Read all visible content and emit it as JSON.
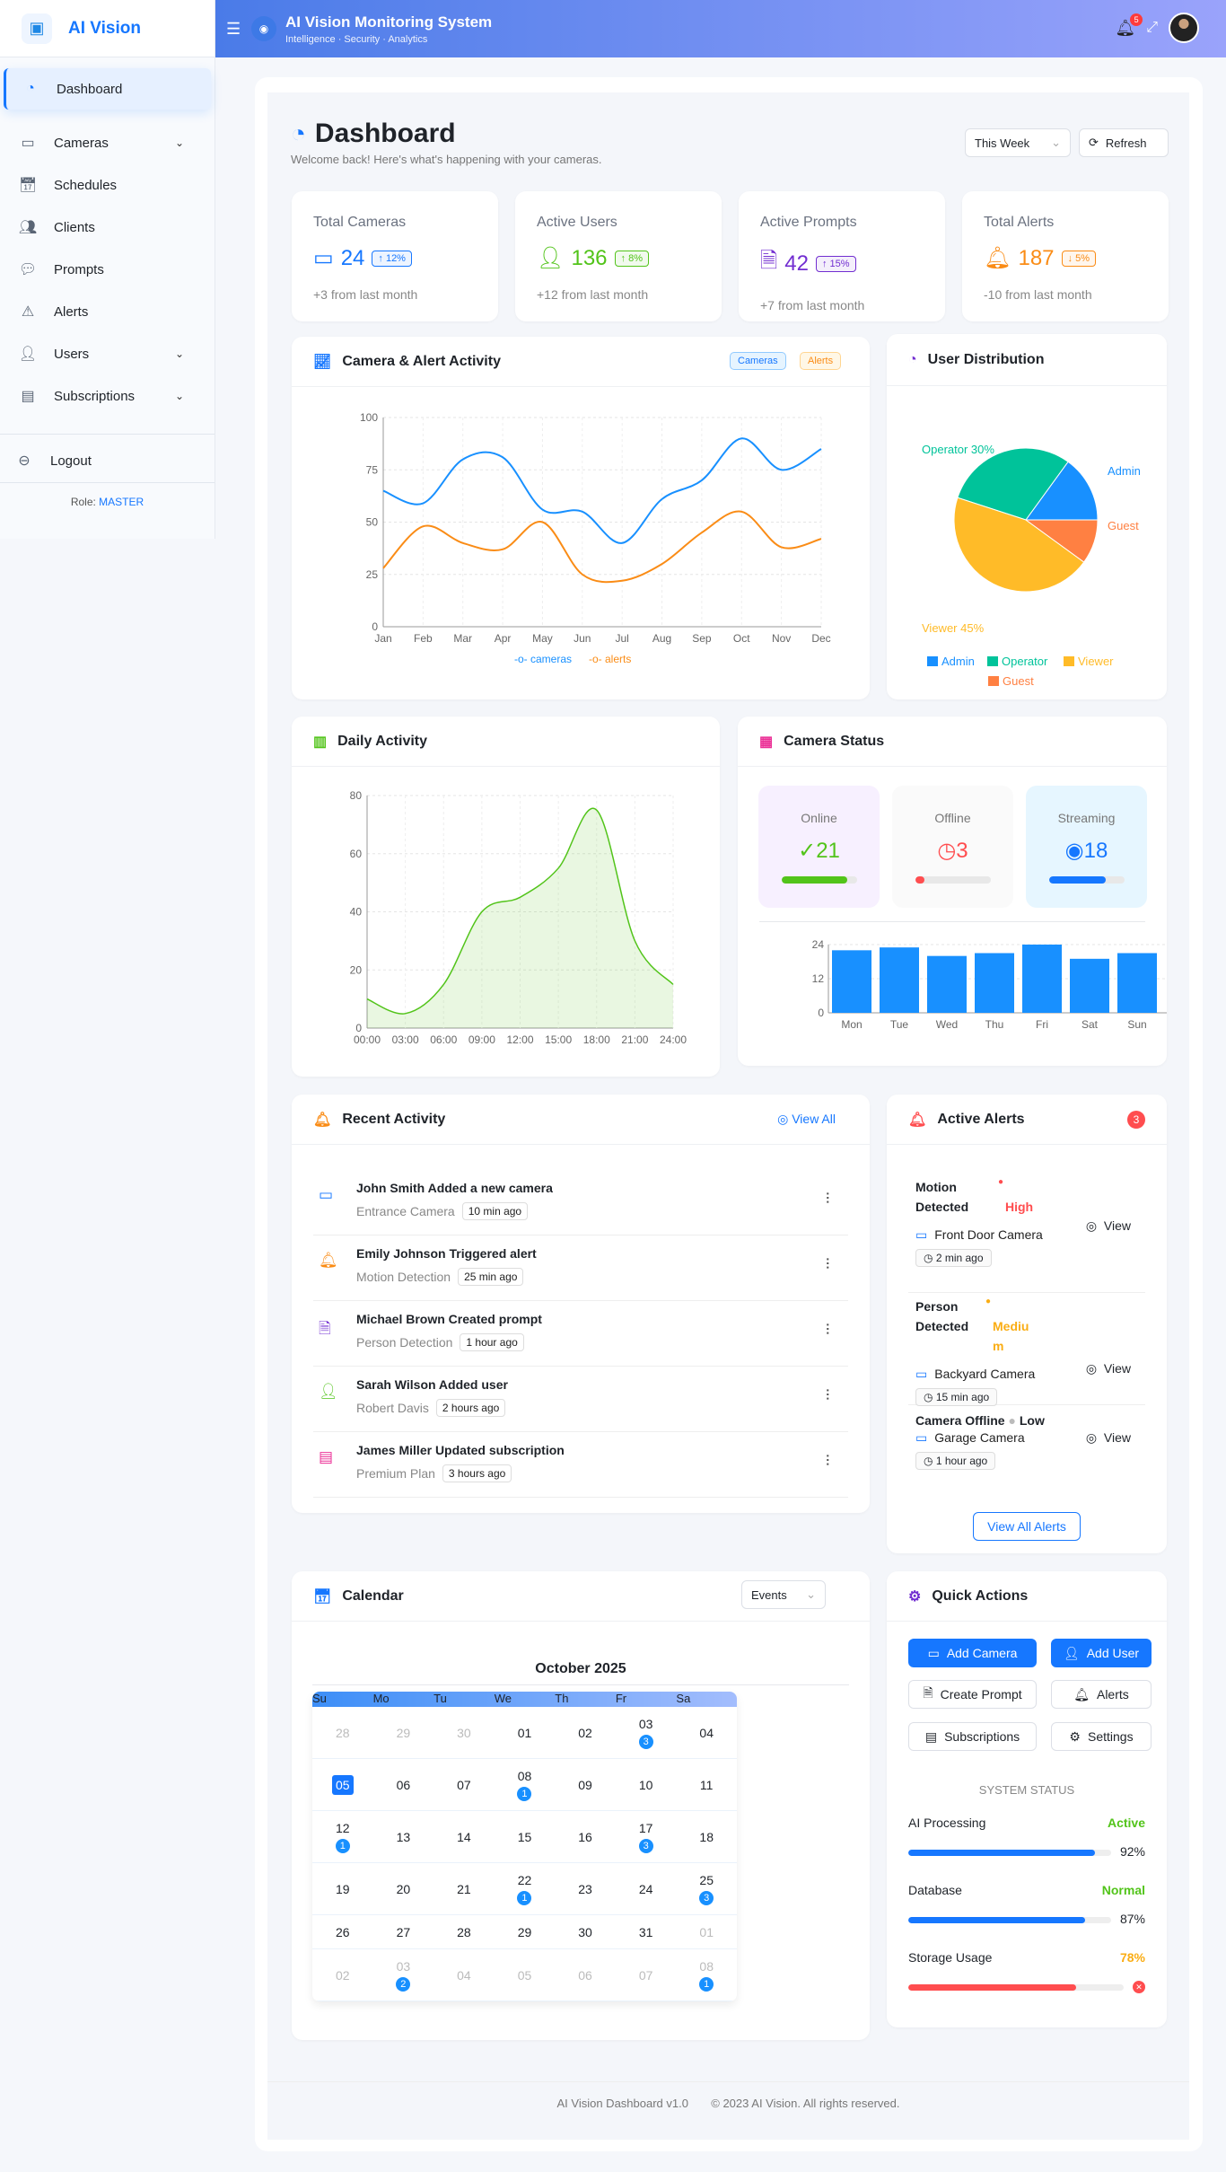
{
  "sidebar": {
    "brand": "AI Vision",
    "items": [
      {
        "label": "Dashboard",
        "icon": "dashboard-icon"
      },
      {
        "label": "Cameras",
        "icon": "camera-icon",
        "chevron": true
      },
      {
        "label": "Schedules",
        "icon": "calendar-icon"
      },
      {
        "label": "Clients",
        "icon": "clients-icon"
      },
      {
        "label": "Prompts",
        "icon": "chat-icon"
      },
      {
        "label": "Alerts",
        "icon": "siren-icon"
      },
      {
        "label": "Users",
        "icon": "user-icon",
        "chevron": true
      },
      {
        "label": "Subscriptions",
        "icon": "card-icon",
        "chevron": true
      }
    ],
    "logout": "Logout",
    "role_label": "Role:",
    "role": "MASTER"
  },
  "header": {
    "title": "AI Vision Monitoring System",
    "subtitle": "Intelligence · Security · Analytics",
    "notifications": "5"
  },
  "page": {
    "title": "Dashboard",
    "welcome": "Welcome back! Here's what's happening with your cameras.",
    "period": "This Week",
    "refresh": "Refresh"
  },
  "stats": [
    {
      "label": "Total Cameras",
      "value": "24",
      "change": "↑ 12%",
      "foot": "+3 from last month",
      "color": "#1677ff"
    },
    {
      "label": "Active Users",
      "value": "136",
      "change": "↑ 8%",
      "foot": "+12 from last month",
      "color": "#52c41a"
    },
    {
      "label": "Active Prompts",
      "value": "42",
      "change": "↑ 15%",
      "foot": "+7 from last month",
      "color": "#722ed1"
    },
    {
      "label": "Total Alerts",
      "value": "187",
      "change": "↓ 5%",
      "foot": "-10 from last month",
      "color": "#fa8c16"
    }
  ],
  "activity_card": {
    "title": "Camera & Alert Activity",
    "pill_cameras": "Cameras",
    "pill_alerts": "Alerts"
  },
  "distribution_card": {
    "title": "User Distribution"
  },
  "daily_card": {
    "title": "Daily Activity"
  },
  "camera_status": {
    "title": "Camera Status",
    "tiles": [
      {
        "label": "Online",
        "value": "21",
        "fraction": 0.875,
        "color": "#52c41a"
      },
      {
        "label": "Offline",
        "value": "3",
        "fraction": 0.125,
        "color": "#ff4d4f"
      },
      {
        "label": "Streaming",
        "value": "18",
        "fraction": 0.75,
        "color": "#1677ff"
      }
    ]
  },
  "chart_data": [
    {
      "type": "line",
      "categories": [
        "Jan",
        "Feb",
        "Mar",
        "Apr",
        "May",
        "Jun",
        "Jul",
        "Aug",
        "Sep",
        "Oct",
        "Nov",
        "Dec"
      ],
      "series": [
        {
          "name": "cameras",
          "values": [
            65,
            59,
            80,
            81,
            56,
            55,
            40,
            61,
            70,
            90,
            75,
            85
          ],
          "color": "#1890ff"
        },
        {
          "name": "alerts",
          "values": [
            28,
            48,
            40,
            37,
            50,
            25,
            22,
            30,
            45,
            55,
            38,
            42
          ],
          "color": "#fa8c16"
        }
      ],
      "ylim": [
        0,
        100
      ],
      "yticks": [
        0,
        25,
        50,
        75,
        100
      ],
      "grid": true,
      "legend": "bottom"
    },
    {
      "type": "pie",
      "slices": [
        {
          "name": "Admin",
          "value": 15,
          "label": "Admin",
          "color": "#1890ff"
        },
        {
          "name": "Operator",
          "value": 30,
          "label": "Operator 30%",
          "color": "#00c39a"
        },
        {
          "name": "Viewer",
          "value": 45,
          "label": "Viewer 45%",
          "color": "#ffbb28"
        },
        {
          "name": "Guest",
          "value": 10,
          "label": "Guest",
          "color": "#ff8042"
        }
      ],
      "legend": "bottom"
    },
    {
      "type": "area",
      "x": [
        "00:00",
        "03:00",
        "06:00",
        "09:00",
        "12:00",
        "15:00",
        "18:00",
        "21:00",
        "24:00"
      ],
      "values": [
        10,
        5,
        15,
        40,
        45,
        55,
        75,
        30,
        15
      ],
      "ylim": [
        0,
        80
      ],
      "yticks": [
        0,
        20,
        40,
        60,
        80
      ],
      "color": "#52c41a",
      "grid": true
    },
    {
      "type": "bar",
      "categories": [
        "Mon",
        "Tue",
        "Wed",
        "Thu",
        "Fri",
        "Sat",
        "Sun"
      ],
      "values": [
        22,
        23,
        20,
        21,
        24,
        19,
        21
      ],
      "ylim": [
        0,
        24
      ],
      "yticks": [
        0,
        12,
        24
      ],
      "color": "#1890ff"
    }
  ],
  "recent": {
    "title": "Recent Activity",
    "view_all": "View All",
    "items": [
      {
        "title": "John Smith Added a new camera",
        "sub": "Entrance Camera",
        "time": "10 min ago",
        "icon": "camera-icon",
        "color": "#1677ff"
      },
      {
        "title": "Emily Johnson Triggered alert",
        "sub": "Motion Detection",
        "time": "25 min ago",
        "icon": "bell-icon",
        "color": "#fa8c16"
      },
      {
        "title": "Michael Brown Created prompt",
        "sub": "Person Detection",
        "time": "1 hour ago",
        "icon": "file-icon",
        "color": "#722ed1"
      },
      {
        "title": "Sarah Wilson Added user",
        "sub": "Robert Davis",
        "time": "2 hours ago",
        "icon": "user-icon",
        "color": "#52c41a"
      },
      {
        "title": "James Miller Updated subscription",
        "sub": "Premium Plan",
        "time": "3 hours ago",
        "icon": "card-icon",
        "color": "#eb2f96"
      }
    ]
  },
  "alerts": {
    "title": "Active Alerts",
    "count": "3",
    "view_label": "View",
    "view_all": "View All Alerts",
    "items": [
      {
        "name": "Motion Detected",
        "level": "High",
        "level_color": "#ff4d4f",
        "camera": "Front Door Camera",
        "time": "2 min ago"
      },
      {
        "name": "Person Detected",
        "level": "Medium",
        "level_color": "#faad14",
        "camera": "Backyard Camera",
        "time": "15 min ago"
      },
      {
        "name": "Camera Offline",
        "level": "Low",
        "level_color": "#bbbbbb",
        "camera": "Garage Camera",
        "time": "1 hour ago"
      }
    ]
  },
  "calendar": {
    "title": "Calendar",
    "mode": "Events",
    "month": "October 2025",
    "weekdays": [
      "Su",
      "Mo",
      "Tu",
      "We",
      "Th",
      "Fr",
      "Sa"
    ],
    "weeks": [
      [
        {
          "d": "28",
          "m": 1
        },
        {
          "d": "29",
          "m": 1
        },
        {
          "d": "30",
          "m": 1
        },
        {
          "d": "01"
        },
        {
          "d": "02"
        },
        {
          "d": "03",
          "e": "3"
        },
        {
          "d": "04"
        }
      ],
      [
        {
          "d": "05",
          "t": 1
        },
        {
          "d": "06"
        },
        {
          "d": "07"
        },
        {
          "d": "08",
          "e": "1"
        },
        {
          "d": "09"
        },
        {
          "d": "10"
        },
        {
          "d": "11"
        }
      ],
      [
        {
          "d": "12",
          "e": "1"
        },
        {
          "d": "13"
        },
        {
          "d": "14"
        },
        {
          "d": "15"
        },
        {
          "d": "16"
        },
        {
          "d": "17",
          "e": "3"
        },
        {
          "d": "18"
        }
      ],
      [
        {
          "d": "19"
        },
        {
          "d": "20"
        },
        {
          "d": "21"
        },
        {
          "d": "22",
          "e": "1"
        },
        {
          "d": "23"
        },
        {
          "d": "24"
        },
        {
          "d": "25",
          "e": "3"
        }
      ],
      [
        {
          "d": "26"
        },
        {
          "d": "27"
        },
        {
          "d": "28"
        },
        {
          "d": "29"
        },
        {
          "d": "30"
        },
        {
          "d": "31"
        },
        {
          "d": "01",
          "m": 1
        }
      ],
      [
        {
          "d": "02",
          "m": 1
        },
        {
          "d": "03",
          "m": 1,
          "e": "2"
        },
        {
          "d": "04",
          "m": 1
        },
        {
          "d": "05",
          "m": 1
        },
        {
          "d": "06",
          "m": 1
        },
        {
          "d": "07",
          "m": 1
        },
        {
          "d": "08",
          "m": 1,
          "e": "1"
        }
      ]
    ]
  },
  "quick": {
    "title": "Quick Actions",
    "add_camera": "Add Camera",
    "add_user": "Add User",
    "create_prompt": "Create Prompt",
    "alerts": "Alerts",
    "subscriptions": "Subscriptions",
    "settings": "Settings",
    "system_status": "SYSTEM STATUS",
    "status": [
      {
        "label": "AI Processing",
        "state": "Active",
        "state_color": "#52c41a",
        "percent": 92,
        "percent_label": "92%",
        "bar_color": "#1677ff"
      },
      {
        "label": "Database",
        "state": "Normal",
        "state_color": "#52c41a",
        "percent": 87,
        "percent_label": "87%",
        "bar_color": "#1677ff"
      },
      {
        "label": "Storage Usage",
        "state": "78%",
        "state_color": "#faad14",
        "percent": 78,
        "percent_label": "",
        "bar_color": "#ff4d4f"
      }
    ]
  },
  "footer": {
    "version": "AI Vision Dashboard v1.0",
    "copyright": "© 2023 AI Vision. All rights reserved."
  }
}
